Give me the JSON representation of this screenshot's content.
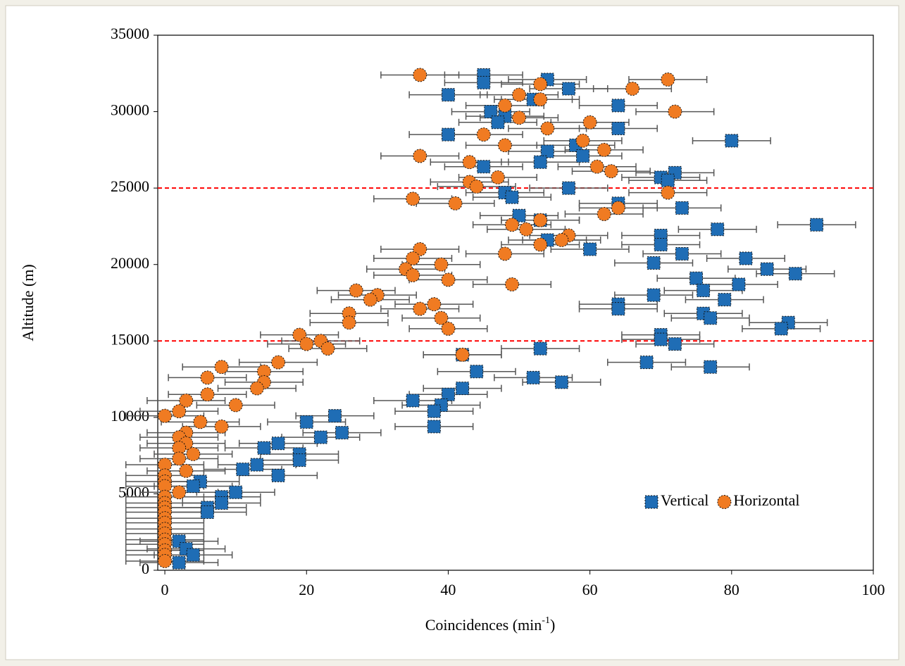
{
  "chart_data": {
    "type": "scatter",
    "x_label_parts": [
      "Coincidences (min",
      "-1",
      ")"
    ],
    "y_label": "Altitude (m)",
    "xlim": [
      -1,
      100
    ],
    "xticks": [
      0,
      20,
      40,
      60,
      80,
      100
    ],
    "ylim": [
      0,
      35000
    ],
    "yticks": [
      0,
      5000,
      10000,
      15000,
      20000,
      25000,
      30000,
      35000
    ],
    "reference_lines": [
      15000,
      25000
    ],
    "reference_color": "#ff0000",
    "legend": "lower right",
    "series": [
      {
        "name": "Vertical",
        "marker": "square",
        "color": "#1f6db5",
        "xerr": 5.5,
        "x": [
          45,
          45,
          54,
          40,
          57,
          52,
          46,
          48,
          47,
          64,
          40,
          64,
          80,
          54,
          58,
          59,
          53,
          45,
          72,
          70,
          71,
          57,
          48,
          49,
          73,
          64,
          50,
          53,
          92,
          78,
          70,
          54,
          60,
          70,
          73,
          82,
          69,
          85,
          89,
          75,
          81,
          76,
          69,
          79,
          64,
          64,
          76,
          77,
          88,
          87,
          70,
          70,
          72,
          53,
          42,
          68,
          77,
          44,
          52,
          56,
          42,
          40,
          35,
          39,
          38,
          24,
          20,
          38,
          25,
          22,
          16,
          14,
          19,
          19,
          13,
          11,
          16,
          5,
          4,
          10,
          8,
          8,
          6,
          6,
          2,
          3,
          4,
          2
        ],
        "values": [
          32400,
          31900,
          32100,
          31100,
          31500,
          30800,
          30000,
          29700,
          29300,
          30400,
          28500,
          28900,
          28100,
          27400,
          27800,
          27100,
          26700,
          26400,
          26000,
          25700,
          25500,
          25000,
          24700,
          24400,
          23700,
          24000,
          23200,
          22900,
          22600,
          22300,
          21900,
          21600,
          21000,
          21300,
          20700,
          20400,
          20100,
          19700,
          19400,
          19100,
          18700,
          18300,
          18000,
          17700,
          17400,
          17100,
          16800,
          16500,
          16200,
          15800,
          15400,
          15100,
          14800,
          14500,
          14100,
          13600,
          13300,
          13000,
          12600,
          12300,
          11900,
          11500,
          11100,
          10800,
          10400,
          10100,
          9700,
          9400,
          9000,
          8700,
          8300,
          8000,
          7600,
          7200,
          6900,
          6600,
          6200,
          5800,
          5500,
          5100,
          4800,
          4400,
          4100,
          3800,
          1900,
          1400,
          1000,
          500
        ]
      },
      {
        "name": "Horizontal",
        "marker": "circle",
        "color": "#f07b22",
        "xerr": 5.5,
        "x": [
          36,
          71,
          53,
          66,
          50,
          53,
          48,
          72,
          50,
          60,
          54,
          45,
          59,
          48,
          62,
          36,
          61,
          63,
          43,
          47,
          43,
          44,
          71,
          35,
          41,
          64,
          62,
          53,
          49,
          51,
          57,
          56,
          53,
          36,
          48,
          35,
          39,
          34,
          35,
          40,
          49,
          27,
          30,
          29,
          38,
          36,
          26,
          39,
          26,
          40,
          19,
          22,
          20,
          23,
          42,
          16,
          8,
          14,
          6,
          14,
          13,
          6,
          3,
          10,
          2,
          0,
          5,
          8,
          3,
          2,
          3,
          2,
          4,
          2,
          3,
          0,
          0,
          0,
          0,
          2,
          0,
          0,
          0,
          0,
          0,
          0,
          0,
          0,
          0,
          0,
          0,
          0,
          0
        ],
        "values": [
          32400,
          32100,
          31800,
          31500,
          31100,
          30800,
          30400,
          30000,
          29600,
          29300,
          28900,
          28500,
          28100,
          27800,
          27500,
          27100,
          26400,
          26100,
          26700,
          25700,
          25400,
          25100,
          24700,
          24300,
          24000,
          23700,
          23300,
          22900,
          22600,
          22300,
          21900,
          21600,
          21300,
          21000,
          20700,
          20400,
          20000,
          19700,
          19300,
          19000,
          18700,
          18300,
          18000,
          17700,
          17400,
          17100,
          16800,
          16500,
          16200,
          15800,
          15400,
          15000,
          14800,
          14500,
          14100,
          13600,
          13300,
          13000,
          12600,
          12300,
          11900,
          11500,
          11100,
          10800,
          10400,
          10100,
          9700,
          9400,
          9000,
          8700,
          8300,
          8000,
          7600,
          7300,
          6500,
          6900,
          6200,
          5800,
          5500,
          5100,
          4800,
          4400,
          4100,
          3800,
          3400,
          3100,
          2700,
          2400,
          2000,
          1700,
          1300,
          1000,
          600
        ]
      }
    ]
  }
}
